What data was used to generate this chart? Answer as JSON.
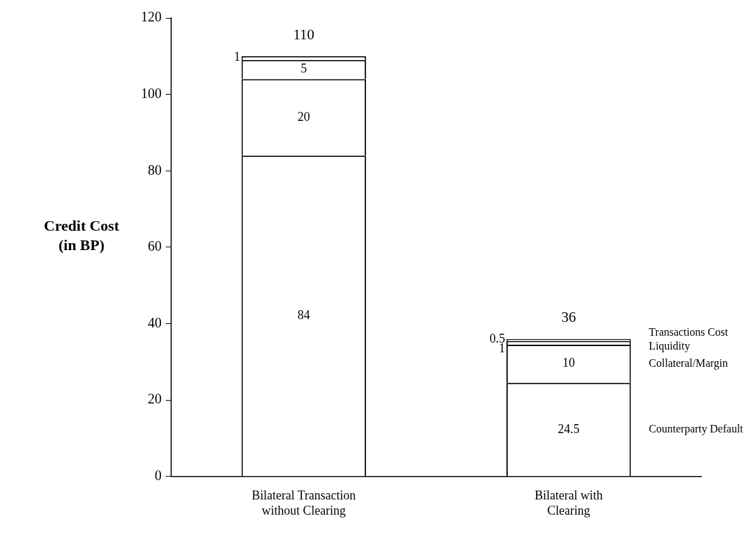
{
  "chart_data": {
    "type": "bar",
    "stacked": true,
    "ylabel": "Credit Cost\n(in BP)",
    "categories": [
      "Bilateral Transaction without Clearing",
      "Bilateral with Clearing"
    ],
    "series": [
      {
        "name": "Counterparty Default",
        "color": "#ffffff",
        "values": [
          84,
          24.5
        ]
      },
      {
        "name": "Collateral/Margin",
        "color": "#ffffff",
        "values": [
          20,
          10
        ]
      },
      {
        "name": "Liquidity",
        "color": "#ffffff",
        "values": [
          5,
          1
        ]
      },
      {
        "name": "Transactions Cost",
        "color": "#ffffff",
        "values": [
          1,
          0.5
        ]
      }
    ],
    "ylim": [
      0,
      120
    ],
    "yticks": [
      0,
      20,
      40,
      60,
      80,
      100,
      120
    ],
    "grid": false,
    "legend": "right",
    "data_labels": true,
    "totals": [
      "110",
      "36"
    ]
  }
}
